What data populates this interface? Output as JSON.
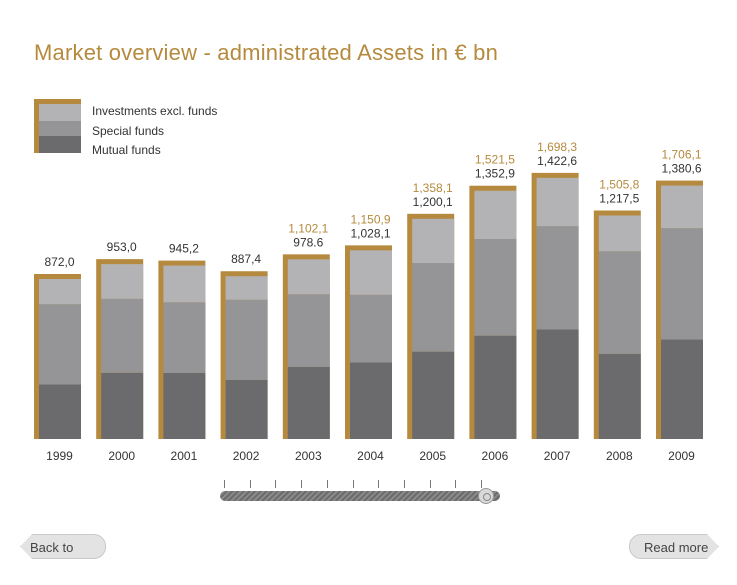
{
  "chart_data": {
    "type": "bar",
    "title": "Market overview - administrated Assets in € bn",
    "categories": [
      "1999",
      "2000",
      "2001",
      "2002",
      "2003",
      "2004",
      "2005",
      "2006",
      "2007",
      "2008",
      "2009"
    ],
    "series": [
      {
        "name": "Mutual funds",
        "color": "#6b6b6d",
        "values": [
          297,
          361,
          360,
          322,
          393,
          417,
          476,
          563,
          597,
          464,
          542
        ]
      },
      {
        "name": "Special funds",
        "color": "#959597",
        "values": [
          438,
          403,
          385,
          437,
          396,
          369,
          483,
          527,
          563,
          559,
          607
        ]
      },
      {
        "name": "Investments excl. funds",
        "color": "#b3b3b5",
        "values": [
          137,
          189,
          200,
          128,
          190,
          242,
          241,
          263,
          263,
          195,
          232
        ]
      }
    ],
    "total_labels": [
      "872,0",
      "953,0",
      "945,2",
      "887,4",
      "978.6",
      "1,028,1",
      "1,200,1",
      "1,352,9",
      "1,422,6",
      "1,217,5",
      "1,380,6"
    ],
    "totals_incl_other": [
      "",
      "",
      "",
      "",
      "1,102,1",
      "1,150,9",
      "1,358,1",
      "1,521,5",
      "1,698,3",
      "1,505,8",
      "1,706,1"
    ],
    "totals_incl_other_values": [
      null,
      null,
      null,
      null,
      1102.1,
      1150.9,
      1358.1,
      1521.5,
      1698.3,
      1505.8,
      1706.1
    ],
    "accent_color": "#b58a3e",
    "ylim": [
      0,
      1800
    ],
    "grid": false,
    "legend": "top-left"
  },
  "legend": {
    "items": [
      {
        "label": "Investments excl. funds",
        "color": "#b3b3b5"
      },
      {
        "label": "Special funds",
        "color": "#959597"
      },
      {
        "label": "Mutual funds",
        "color": "#6b6b6d"
      }
    ]
  },
  "slider": {
    "selected_year": "2009"
  },
  "nav": {
    "back_label": "Back to globe",
    "more_label": "Read more"
  }
}
